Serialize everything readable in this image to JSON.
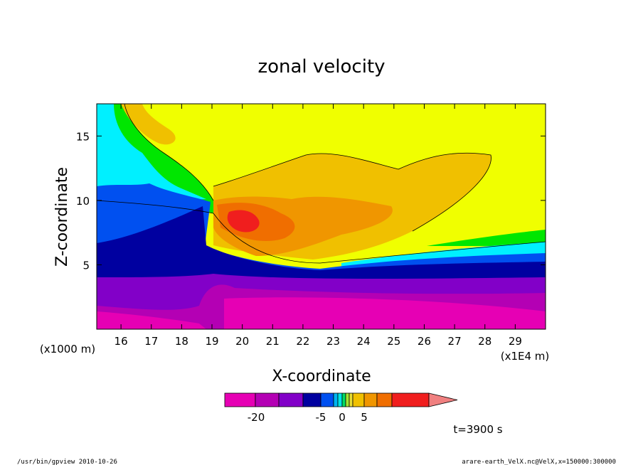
{
  "chart_data": {
    "type": "heatmap",
    "title": "zonal velocity",
    "xlabel": "X-coordinate",
    "ylabel": "Z-coordinate",
    "x_unit_note": "(x1E4 m)",
    "y_unit_note": "(x1000 m)",
    "xlim": [
      15.2,
      30.0
    ],
    "ylim": [
      0.0,
      17.5
    ],
    "x_ticks": [
      16,
      17,
      18,
      19,
      20,
      21,
      22,
      23,
      24,
      25,
      26,
      27,
      28,
      29
    ],
    "y_ticks": [
      5,
      10,
      15
    ],
    "colorbar": {
      "tick_labels": [
        "-20",
        "-5",
        "0",
        "5"
      ],
      "colors": [
        "#e600b4",
        "#b400b4",
        "#8200c8",
        "#0000a0",
        "#0050f0",
        "#00b4f0",
        "#00e6e6",
        "#00dc64",
        "#a0e632",
        "#e6dc32",
        "#f0c000",
        "#f09600",
        "#f06e00",
        "#f01e1e",
        "#f08080"
      ]
    },
    "time_label": "t=3900 s",
    "footer_left": "/usr/bin/gpview   2010-10-26",
    "footer_right": "arare-earth_VelX.nc@VelX,x=150000:300000"
  }
}
